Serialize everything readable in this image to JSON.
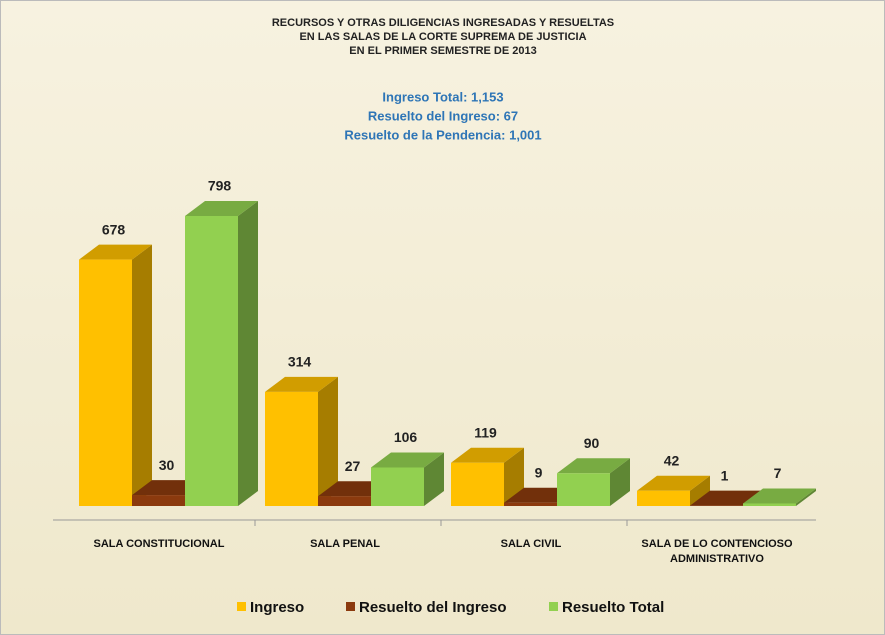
{
  "chart_data": {
    "type": "bar3d",
    "title": [
      "RECURSOS Y OTRAS DILIGENCIAS INGRESADAS Y RESUELTAS",
      "EN LAS SALAS DE LA CORTE SUPREMA DE JUSTICIA",
      "EN EL PRIMER SEMESTRE DE 2013"
    ],
    "annotations": [
      "Ingreso Total: 1,153",
      "Resuelto del Ingreso: 67",
      "Resuelto de la Pendencia: 1,001"
    ],
    "categories": [
      "SALA CONSTITUCIONAL",
      "SALA PENAL",
      "SALA CIVIL",
      "SALA DE LO CONTENCIOSO ADMINISTRATIVO"
    ],
    "series": [
      {
        "name": "Ingreso",
        "color": "#ffc000",
        "values": [
          678,
          314,
          119,
          42
        ]
      },
      {
        "name": "Resuelto del Ingreso",
        "color": "#8b3a0e",
        "values": [
          30,
          27,
          9,
          1
        ]
      },
      {
        "name": "Resuelto Total",
        "color": "#92d050",
        "values": [
          798,
          106,
          90,
          7
        ]
      }
    ],
    "legend": "bottom"
  }
}
